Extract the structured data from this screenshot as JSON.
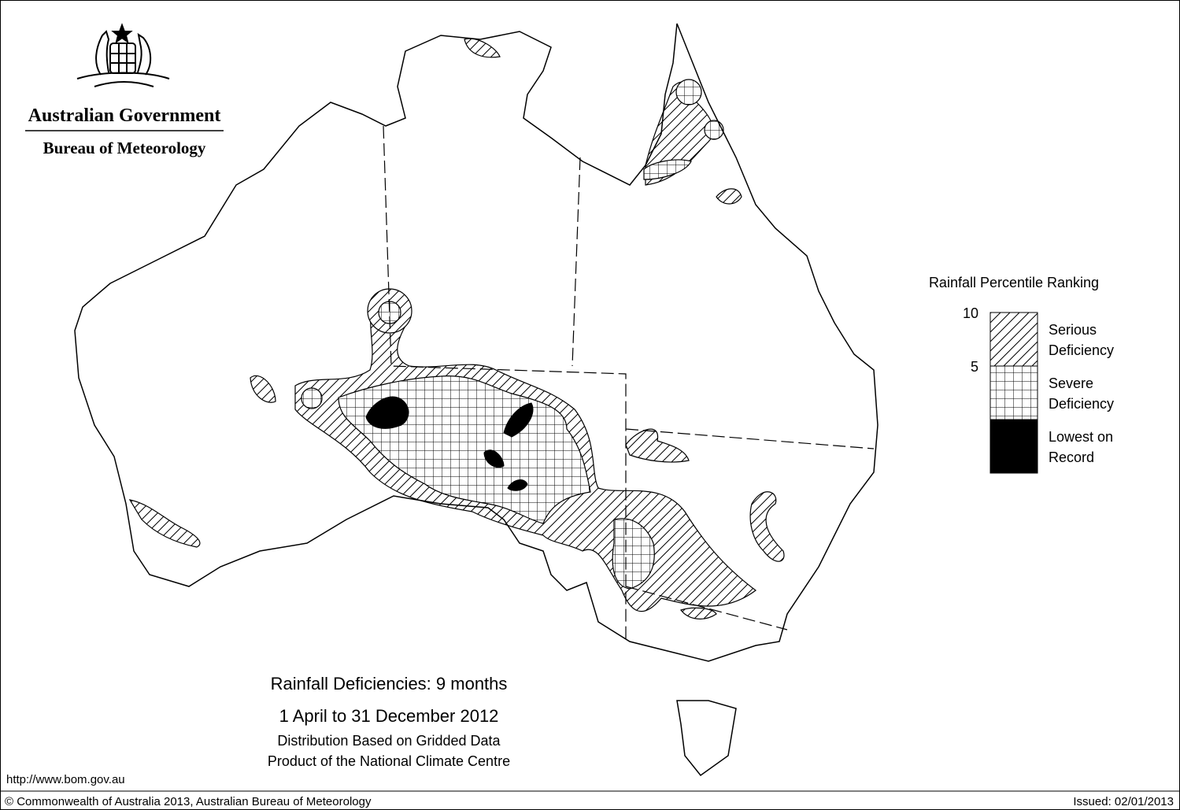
{
  "logo": {
    "government": "Australian Government",
    "bureau": "Bureau of Meteorology"
  },
  "title": {
    "line1": "Rainfall Deficiencies: 9 months",
    "line2": "1 April to 31 December 2012",
    "line3": "Distribution Based on Gridded Data",
    "line4": "Product of the National Climate Centre"
  },
  "legend": {
    "title": "Rainfall Percentile Ranking",
    "ticks": [
      10,
      5
    ],
    "items": [
      {
        "lines": [
          "Serious",
          "Deficiency"
        ]
      },
      {
        "lines": [
          "Severe",
          "Deficiency"
        ]
      },
      {
        "lines": [
          "Lowest on",
          "Record"
        ]
      }
    ]
  },
  "footer": {
    "url": "http://www.bom.gov.au",
    "copyright": "© Commonwealth of Australia 2013, Australian Bureau of Meteorology",
    "issued": "Issued: 02/01/2013"
  }
}
